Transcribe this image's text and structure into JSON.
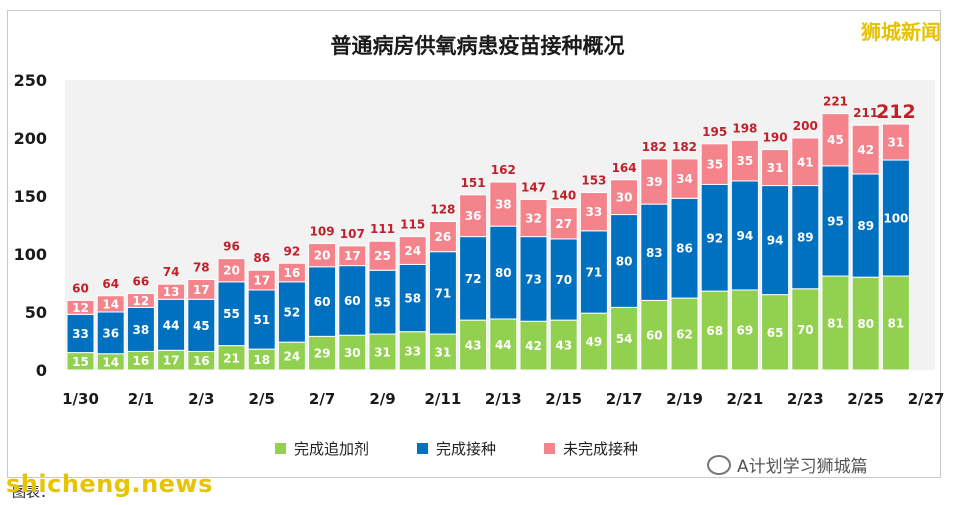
{
  "brand": "狮城新闻",
  "watermark": "shicheng.news",
  "source_label": "图表：",
  "wechat_account": "A计划学习狮城篇",
  "chart_data": {
    "type": "bar",
    "stacked": true,
    "title": "普通病房供氧病患疫苗接种概况",
    "categories": [
      "1/30",
      "1/31",
      "2/1",
      "2/2",
      "2/3",
      "2/4",
      "2/5",
      "2/6",
      "2/7",
      "2/8",
      "2/9",
      "2/10",
      "2/11",
      "2/12",
      "2/13",
      "2/14",
      "2/15",
      "2/16",
      "2/17",
      "2/18",
      "2/19",
      "2/20",
      "2/21",
      "2/22",
      "2/23",
      "2/24",
      "2/25",
      "2/26"
    ],
    "x_tick_labels": [
      "1/30",
      "2/1",
      "2/3",
      "2/5",
      "2/7",
      "2/9",
      "2/11",
      "2/13",
      "2/15",
      "2/17",
      "2/19",
      "2/21",
      "2/23",
      "2/25",
      "2/27"
    ],
    "ylim": [
      0,
      250
    ],
    "yticks": [
      0,
      50,
      100,
      150,
      200,
      250
    ],
    "grid": false,
    "legend_position": "bottom",
    "series": [
      {
        "name": "完成追加剂",
        "color": "#92d050",
        "values": [
          15,
          14,
          16,
          17,
          16,
          21,
          18,
          24,
          29,
          30,
          31,
          33,
          31,
          43,
          44,
          42,
          43,
          49,
          54,
          60,
          62,
          68,
          69,
          65,
          70,
          81,
          80,
          81
        ]
      },
      {
        "name": "完成接种",
        "color": "#0070c0",
        "values": [
          33,
          36,
          38,
          44,
          45,
          55,
          51,
          52,
          60,
          60,
          55,
          58,
          71,
          72,
          80,
          73,
          70,
          71,
          80,
          83,
          86,
          92,
          94,
          94,
          89,
          95,
          89,
          100
        ]
      },
      {
        "name": "未完成接种",
        "color": "#f4838b",
        "values": [
          12,
          14,
          12,
          13,
          17,
          20,
          17,
          16,
          20,
          17,
          25,
          24,
          26,
          36,
          38,
          32,
          27,
          33,
          30,
          39,
          34,
          35,
          35,
          31,
          41,
          45,
          42,
          31
        ]
      }
    ],
    "totals": [
      60,
      64,
      66,
      74,
      78,
      96,
      86,
      92,
      109,
      107,
      111,
      115,
      128,
      151,
      162,
      147,
      140,
      153,
      164,
      182,
      182,
      195,
      198,
      190,
      200,
      221,
      211,
      212
    ]
  }
}
